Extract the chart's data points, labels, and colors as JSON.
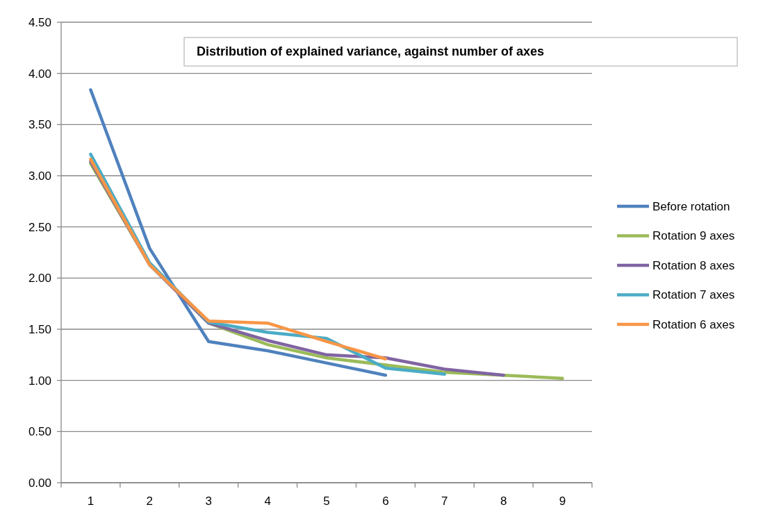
{
  "chart_data": {
    "type": "line",
    "title": "Distribution of explained variance, against number of axes",
    "categories": [
      "1",
      "2",
      "3",
      "4",
      "5",
      "6",
      "7",
      "8",
      "9"
    ],
    "series": [
      {
        "name": "Before rotation",
        "color": "#4f81bd",
        "values": [
          3.84,
          2.29,
          1.38,
          1.29,
          1.17,
          1.05,
          null,
          null,
          null
        ]
      },
      {
        "name": "Rotation 9 axes",
        "color": "#9bbb59",
        "values": [
          3.12,
          2.13,
          1.56,
          1.35,
          1.22,
          1.15,
          1.08,
          1.05,
          1.02
        ]
      },
      {
        "name": "Rotation 8 axes",
        "color": "#8064a2",
        "values": [
          3.14,
          2.13,
          1.56,
          1.39,
          1.25,
          1.22,
          1.11,
          1.05,
          null
        ]
      },
      {
        "name": "Rotation 7 axes",
        "color": "#4bacc6",
        "values": [
          3.21,
          2.15,
          1.57,
          1.47,
          1.41,
          1.12,
          1.06,
          null,
          null
        ]
      },
      {
        "name": "Rotation 6 axes",
        "color": "#f79646",
        "values": [
          3.16,
          2.13,
          1.58,
          1.56,
          1.38,
          1.21,
          null,
          null,
          null
        ]
      }
    ],
    "ylim": [
      0,
      4.5
    ],
    "yticks": [
      {
        "value": 0,
        "label": "0.00"
      },
      {
        "value": 0.5,
        "label": "0.50"
      },
      {
        "value": 1,
        "label": "1.00"
      },
      {
        "value": 1.5,
        "label": "1.50"
      },
      {
        "value": 2,
        "label": "2.00"
      },
      {
        "value": 2.5,
        "label": "2.50"
      },
      {
        "value": 3,
        "label": "3.00"
      },
      {
        "value": 3.5,
        "label": "3.50"
      },
      {
        "value": 4,
        "label": "4.00"
      },
      {
        "value": 4.5,
        "label": "4.50"
      }
    ],
    "grid": "y",
    "legend": "right",
    "marker": "none",
    "line_style": "solid"
  }
}
